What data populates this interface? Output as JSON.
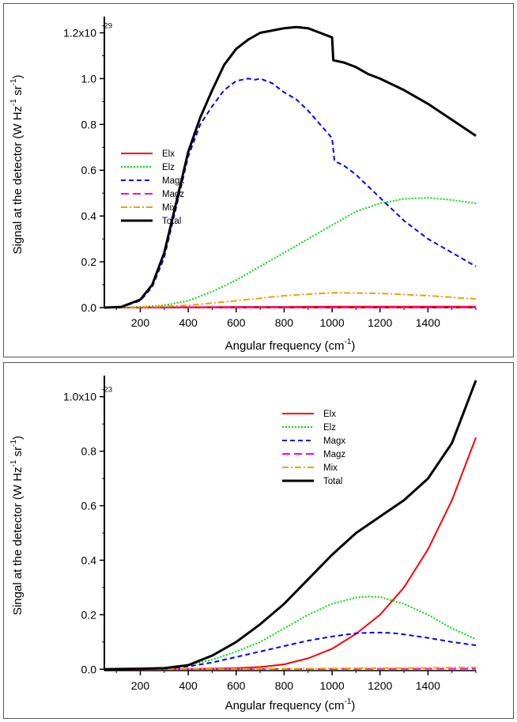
{
  "chart_data": [
    {
      "type": "line",
      "xlabel": "Angular frequency (cm",
      "xlabel_sup": "-1",
      "xlabel_tail": ")",
      "ylabel": "Signal at the detector (W Hz",
      "ylabel_sup1": "-1",
      "ylabel_mid": " sr",
      "ylabel_sup2": "-1",
      "ylabel_tail": ")",
      "xlim": [
        50,
        1600
      ],
      "ylim": [
        0,
        1.25
      ],
      "xticks": [
        200,
        400,
        600,
        800,
        1000,
        1200,
        1400
      ],
      "xtick_labels": [
        "200",
        "400",
        "600",
        "800",
        "1000",
        "1200",
        "1400"
      ],
      "yticks": [
        0,
        0.2,
        0.4,
        0.6,
        0.8,
        1.0,
        1.2
      ],
      "ytick_labels": [
        "0.0",
        "0.2",
        "0.4",
        "0.6",
        "0.8",
        "1.0",
        "1.2x10"
      ],
      "scale_exponent": "-29",
      "legend_position": "center",
      "series": [
        {
          "name": "Elx",
          "color": "#ff0000",
          "dash": "solid",
          "x": [
            50,
            200,
            400,
            600,
            800,
            1000,
            1200,
            1400,
            1600
          ],
          "y": [
            0,
            0,
            0.002,
            0.003,
            0.003,
            0.004,
            0.004,
            0.004,
            0.004
          ]
        },
        {
          "name": "Elz",
          "color": "#00dd00",
          "dash": "dotted",
          "x": [
            50,
            200,
            300,
            400,
            500,
            600,
            700,
            800,
            900,
            1000,
            1100,
            1200,
            1300,
            1400,
            1500,
            1600
          ],
          "y": [
            0,
            0.003,
            0.01,
            0.03,
            0.07,
            0.12,
            0.18,
            0.24,
            0.3,
            0.36,
            0.42,
            0.455,
            0.475,
            0.48,
            0.47,
            0.455
          ]
        },
        {
          "name": "Magx",
          "color": "#0000ff",
          "dash": "dashed",
          "x": [
            50,
            120,
            200,
            250,
            300,
            350,
            400,
            450,
            500,
            550,
            600,
            650,
            680,
            700,
            750,
            800,
            850,
            900,
            950,
            1000,
            1010,
            1050,
            1100,
            1200,
            1300,
            1400,
            1500,
            1600
          ],
          "y": [
            0,
            0.002,
            0.03,
            0.09,
            0.22,
            0.44,
            0.66,
            0.8,
            0.88,
            0.95,
            0.99,
            1.0,
            0.995,
            1.0,
            0.98,
            0.94,
            0.91,
            0.86,
            0.8,
            0.74,
            0.64,
            0.62,
            0.58,
            0.48,
            0.38,
            0.3,
            0.24,
            0.18
          ]
        },
        {
          "name": "Magz",
          "color": "#ff00cc",
          "dash": "longdash",
          "x": [
            50,
            400,
            800,
            1200,
            1600
          ],
          "y": [
            0,
            0.001,
            0.001,
            0.001,
            0.001
          ]
        },
        {
          "name": "Mix",
          "color": "#f0a000",
          "dash": "dashdot",
          "x": [
            50,
            200,
            400,
            600,
            800,
            1000,
            1200,
            1400,
            1600
          ],
          "y": [
            0,
            0.002,
            0.01,
            0.03,
            0.052,
            0.065,
            0.062,
            0.052,
            0.038
          ]
        },
        {
          "name": "Total",
          "color": "#000000",
          "dash": "solid",
          "width": 3,
          "x": [
            50,
            120,
            200,
            250,
            300,
            350,
            400,
            450,
            500,
            550,
            600,
            650,
            700,
            750,
            800,
            850,
            900,
            950,
            1000,
            1005,
            1050,
            1100,
            1150,
            1200,
            1300,
            1400,
            1500,
            1600
          ],
          "y": [
            0,
            0.003,
            0.035,
            0.1,
            0.24,
            0.46,
            0.68,
            0.83,
            0.95,
            1.06,
            1.13,
            1.17,
            1.2,
            1.21,
            1.22,
            1.225,
            1.22,
            1.2,
            1.18,
            1.08,
            1.07,
            1.05,
            1.02,
            1.0,
            0.95,
            0.89,
            0.82,
            0.75
          ]
        }
      ]
    },
    {
      "type": "line",
      "xlabel": "Angular frequency (cm",
      "xlabel_sup": "-1",
      "xlabel_tail": ")",
      "ylabel": "Singal at the detector (W Hz",
      "ylabel_sup1": "-1",
      "ylabel_mid": " sr",
      "ylabel_sup2": "-1",
      "ylabel_tail": ")",
      "xlim": [
        50,
        1600
      ],
      "ylim": [
        -0.005,
        1.06
      ],
      "xticks": [
        200,
        400,
        600,
        800,
        1000,
        1200,
        1400
      ],
      "xtick_labels": [
        "200",
        "400",
        "600",
        "800",
        "1000",
        "1200",
        "1400"
      ],
      "yticks": [
        0,
        0.2,
        0.4,
        0.6,
        0.8,
        1.0
      ],
      "ytick_labels": [
        "0.0",
        "0.2",
        "0.4",
        "0.6",
        "0.8",
        "1.0x10"
      ],
      "scale_exponent": "-23",
      "legend_position": "top-right",
      "series": [
        {
          "name": "Elx",
          "color": "#ff0000",
          "dash": "solid",
          "x": [
            50,
            400,
            600,
            700,
            800,
            900,
            1000,
            1100,
            1200,
            1300,
            1400,
            1500,
            1600
          ],
          "y": [
            0,
            0.001,
            0.004,
            0.008,
            0.018,
            0.04,
            0.075,
            0.13,
            0.2,
            0.3,
            0.44,
            0.62,
            0.85
          ]
        },
        {
          "name": "Elz",
          "color": "#00dd00",
          "dash": "dotted",
          "x": [
            50,
            300,
            400,
            500,
            600,
            700,
            800,
            900,
            1000,
            1100,
            1150,
            1200,
            1300,
            1400,
            1500,
            1600
          ],
          "y": [
            0,
            0.002,
            0.015,
            0.035,
            0.065,
            0.1,
            0.15,
            0.2,
            0.24,
            0.263,
            0.267,
            0.265,
            0.24,
            0.2,
            0.15,
            0.11
          ]
        },
        {
          "name": "Magx",
          "color": "#0000ff",
          "dash": "dashed",
          "x": [
            50,
            300,
            400,
            500,
            600,
            700,
            800,
            900,
            1000,
            1100,
            1180,
            1250,
            1300,
            1400,
            1500,
            1600
          ],
          "y": [
            0,
            0.001,
            0.01,
            0.025,
            0.045,
            0.065,
            0.085,
            0.105,
            0.12,
            0.132,
            0.135,
            0.133,
            0.128,
            0.115,
            0.1,
            0.088
          ]
        },
        {
          "name": "Magz",
          "color": "#ff00cc",
          "dash": "longdash",
          "x": [
            50,
            800,
            1600
          ],
          "y": [
            0,
            0.001,
            0.002
          ]
        },
        {
          "name": "Mix",
          "color": "#f0a000",
          "dash": "dashdot",
          "x": [
            50,
            600,
            800,
            1000,
            1200,
            1400,
            1600
          ],
          "y": [
            0,
            0.001,
            0.002,
            0.003,
            0.004,
            0.005,
            0.007
          ]
        },
        {
          "name": "Total",
          "color": "#000000",
          "dash": "solid",
          "width": 3,
          "x": [
            50,
            200,
            300,
            400,
            500,
            600,
            700,
            800,
            900,
            1000,
            1100,
            1200,
            1300,
            1400,
            1500,
            1600
          ],
          "y": [
            0,
            0.002,
            0.004,
            0.015,
            0.05,
            0.1,
            0.165,
            0.24,
            0.33,
            0.42,
            0.5,
            0.56,
            0.62,
            0.7,
            0.83,
            1.06
          ]
        }
      ]
    }
  ]
}
